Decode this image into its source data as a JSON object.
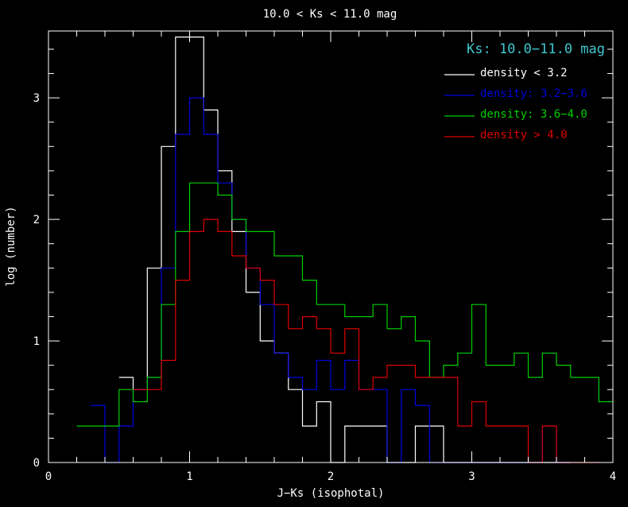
{
  "chart_data": {
    "type": "histogram-step",
    "title": "10.0 < Ks < 11.0 mag",
    "xlabel": "J−Ks (isophotal)",
    "ylabel": "log (number)",
    "xlim": [
      0,
      4
    ],
    "ylim": [
      0,
      3.55
    ],
    "xticks": [
      0,
      1,
      2,
      3,
      4
    ],
    "xtick_labels": [
      "0",
      "1",
      "2",
      "3",
      "4"
    ],
    "yticks": [
      0,
      1,
      2,
      3
    ],
    "ytick_labels": [
      "0",
      "1",
      "2",
      "3"
    ],
    "bin_width": 0.1,
    "legend_title": "Ks: 10.0−11.0 mag",
    "legend_title_color": "#3fc8d0",
    "legend_position": "top-right",
    "series": [
      {
        "name": "density < 3.2",
        "color": "#ffffff",
        "bins": [
          [
            0.5,
            0.7
          ],
          [
            0.6,
            0.6
          ],
          [
            0.7,
            1.6
          ],
          [
            0.8,
            2.6
          ],
          [
            0.9,
            3.5
          ],
          [
            1.0,
            3.5
          ],
          [
            1.1,
            2.9
          ],
          [
            1.2,
            2.4
          ],
          [
            1.3,
            1.9
          ],
          [
            1.4,
            1.4
          ],
          [
            1.5,
            1.0
          ],
          [
            1.6,
            0.9
          ],
          [
            1.7,
            0.6
          ],
          [
            1.8,
            0.3
          ],
          [
            1.9,
            0.5
          ],
          [
            2.0,
            0.0
          ],
          [
            2.1,
            0.3
          ],
          [
            2.3,
            0.3
          ],
          [
            2.4,
            0.0
          ],
          [
            2.6,
            0.3
          ],
          [
            2.8,
            0.0
          ],
          [
            3.0,
            0.0
          ],
          [
            3.2,
            0.0
          ],
          [
            3.4,
            0.0
          ],
          [
            3.6,
            0.0
          ]
        ]
      },
      {
        "name": "density: 3.2−3.6",
        "color": "#0000e0",
        "bins": [
          [
            0.3,
            0.47
          ],
          [
            0.4,
            0.0
          ],
          [
            0.5,
            0.3
          ],
          [
            0.6,
            0.6
          ],
          [
            0.7,
            0.7
          ],
          [
            0.8,
            1.6
          ],
          [
            0.9,
            2.7
          ],
          [
            1.0,
            3.0
          ],
          [
            1.1,
            2.7
          ],
          [
            1.2,
            2.3
          ],
          [
            1.3,
            2.0
          ],
          [
            1.4,
            1.6
          ],
          [
            1.5,
            1.3
          ],
          [
            1.6,
            0.9
          ],
          [
            1.7,
            0.7
          ],
          [
            1.8,
            0.6
          ],
          [
            1.9,
            0.84
          ],
          [
            2.0,
            0.6
          ],
          [
            2.1,
            0.84
          ],
          [
            2.2,
            0.6
          ],
          [
            2.3,
            0.6
          ],
          [
            2.4,
            0.0
          ],
          [
            2.5,
            0.6
          ],
          [
            2.6,
            0.47
          ],
          [
            2.7,
            0.0
          ],
          [
            2.9,
            0.0
          ],
          [
            3.1,
            0.0
          ],
          [
            3.3,
            0.0
          ],
          [
            3.5,
            0.3
          ],
          [
            3.6,
            0.0
          ]
        ]
      },
      {
        "name": "density: 3.6−4.0",
        "color": "#00d000",
        "bins": [
          [
            0.2,
            0.3
          ],
          [
            0.3,
            0.3
          ],
          [
            0.4,
            0.3
          ],
          [
            0.5,
            0.6
          ],
          [
            0.6,
            0.5
          ],
          [
            0.7,
            0.7
          ],
          [
            0.8,
            1.3
          ],
          [
            0.9,
            1.9
          ],
          [
            1.0,
            2.3
          ],
          [
            1.1,
            2.3
          ],
          [
            1.2,
            2.2
          ],
          [
            1.3,
            2.0
          ],
          [
            1.4,
            1.9
          ],
          [
            1.5,
            1.9
          ],
          [
            1.6,
            1.7
          ],
          [
            1.7,
            1.7
          ],
          [
            1.8,
            1.5
          ],
          [
            1.9,
            1.3
          ],
          [
            2.0,
            1.3
          ],
          [
            2.1,
            1.2
          ],
          [
            2.2,
            1.2
          ],
          [
            2.3,
            1.3
          ],
          [
            2.4,
            1.1
          ],
          [
            2.5,
            1.2
          ],
          [
            2.6,
            1.0
          ],
          [
            2.7,
            0.7
          ],
          [
            2.8,
            0.8
          ],
          [
            2.9,
            0.9
          ],
          [
            3.0,
            1.3
          ],
          [
            3.1,
            0.8
          ],
          [
            3.2,
            0.8
          ],
          [
            3.3,
            0.9
          ],
          [
            3.4,
            0.7
          ],
          [
            3.5,
            0.9
          ],
          [
            3.6,
            0.8
          ],
          [
            3.7,
            0.7
          ],
          [
            3.8,
            0.7
          ],
          [
            3.9,
            0.5
          ]
        ]
      },
      {
        "name": "density > 4.0",
        "color": "#e00000",
        "bins": [
          [
            0.6,
            0.6
          ],
          [
            0.7,
            0.6
          ],
          [
            0.8,
            0.84
          ],
          [
            0.9,
            1.5
          ],
          [
            1.0,
            1.9
          ],
          [
            1.1,
            2.0
          ],
          [
            1.2,
            1.9
          ],
          [
            1.3,
            1.7
          ],
          [
            1.4,
            1.6
          ],
          [
            1.5,
            1.5
          ],
          [
            1.6,
            1.3
          ],
          [
            1.7,
            1.1
          ],
          [
            1.8,
            1.2
          ],
          [
            1.9,
            1.1
          ],
          [
            2.0,
            0.9
          ],
          [
            2.1,
            1.1
          ],
          [
            2.2,
            0.6
          ],
          [
            2.3,
            0.7
          ],
          [
            2.4,
            0.8
          ],
          [
            2.5,
            0.8
          ],
          [
            2.6,
            0.7
          ],
          [
            2.7,
            0.7
          ],
          [
            2.8,
            0.7
          ],
          [
            2.9,
            0.3
          ],
          [
            3.0,
            0.5
          ],
          [
            3.1,
            0.3
          ],
          [
            3.2,
            0.3
          ],
          [
            3.3,
            0.3
          ],
          [
            3.4,
            0.0
          ],
          [
            3.5,
            0.3
          ],
          [
            3.6,
            0.0
          ],
          [
            3.8,
            0.0
          ]
        ]
      }
    ]
  }
}
